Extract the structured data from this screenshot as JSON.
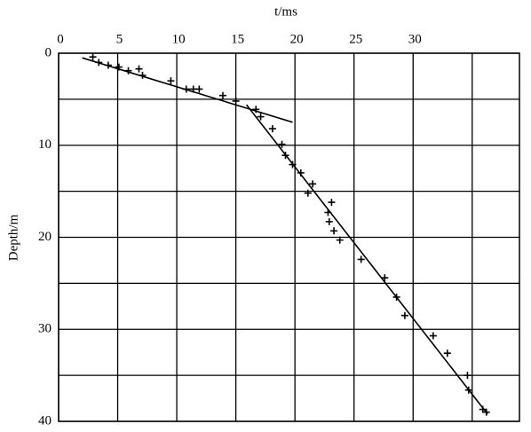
{
  "chart_data": {
    "type": "scatter",
    "x_label": "t/ms",
    "y_label": "Depth/m",
    "xlim": [
      0,
      39
    ],
    "xticks": [
      0,
      5,
      10,
      15,
      20,
      25,
      30
    ],
    "xgrid": [
      0,
      5,
      10,
      15,
      20,
      25,
      30,
      35
    ],
    "ylim": [
      0,
      40
    ],
    "yticks": [
      0,
      10,
      20,
      30,
      40
    ],
    "ygrid": [
      0,
      5,
      10,
      15,
      20,
      25,
      30,
      35,
      40
    ],
    "y_inverted": true,
    "grid": true,
    "color": "#000000",
    "points": {
      "x": [
        2.9,
        3.4,
        4.2,
        5.1,
        5.9,
        6.8,
        7.1,
        9.5,
        10.8,
        11.4,
        11.9,
        13.9,
        15.0,
        16.7,
        17.1,
        18.1,
        18.9,
        19.2,
        19.8,
        20.5,
        21.1,
        21.5,
        23.1,
        22.8,
        22.9,
        23.3,
        23.8,
        25.6,
        27.6,
        28.6,
        29.3,
        31.7,
        32.9,
        34.6,
        34.7,
        35.9,
        36.2
      ],
      "y": [
        0.4,
        1.0,
        1.3,
        1.5,
        1.9,
        1.7,
        2.4,
        3.0,
        3.9,
        3.9,
        3.9,
        4.6,
        5.2,
        6.1,
        6.9,
        8.2,
        9.9,
        11.1,
        12.1,
        13.0,
        15.2,
        14.2,
        16.2,
        17.3,
        18.3,
        19.3,
        20.3,
        22.4,
        24.4,
        26.5,
        28.5,
        30.7,
        32.6,
        35.0,
        36.6,
        38.7,
        39.0
      ]
    },
    "fits": [
      {
        "x": [
          2.0,
          19.8
        ],
        "y": [
          0.5,
          7.5
        ]
      },
      {
        "x": [
          15.9,
          36.3
        ],
        "y": [
          5.6,
          39.2
        ]
      }
    ]
  }
}
